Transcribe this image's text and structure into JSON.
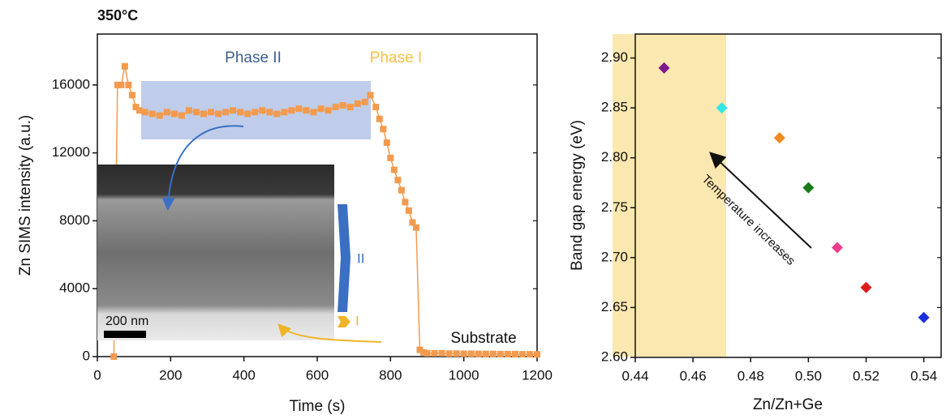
{
  "chart_data": [
    {
      "type": "line",
      "title": "350°C",
      "xlabel": "Time (s)",
      "ylabel": "Zn SIMS intensity (a.u.)",
      "x": [
        45,
        55,
        65,
        75,
        85,
        95,
        105,
        115,
        130,
        150,
        170,
        190,
        210,
        230,
        250,
        270,
        290,
        310,
        330,
        350,
        370,
        390,
        410,
        430,
        450,
        470,
        490,
        510,
        530,
        550,
        570,
        590,
        610,
        630,
        650,
        670,
        690,
        710,
        730,
        745,
        760,
        770,
        780,
        790,
        800,
        810,
        820,
        830,
        840,
        850,
        860,
        870,
        880,
        890,
        900,
        920,
        940,
        960,
        980,
        1000,
        1020,
        1040,
        1060,
        1080,
        1100,
        1120,
        1140,
        1160,
        1180,
        1200
      ],
      "series": [
        {
          "color": "#f29b4f",
          "values": [
            0,
            16000,
            16000,
            17100,
            16000,
            15400,
            14700,
            14500,
            14400,
            14300,
            14200,
            14400,
            14300,
            14200,
            14500,
            14400,
            14300,
            14400,
            14300,
            14400,
            14500,
            14400,
            14300,
            14400,
            14500,
            14400,
            14300,
            14400,
            14500,
            14600,
            14500,
            14400,
            14600,
            14500,
            14700,
            14800,
            14700,
            14900,
            15000,
            15400,
            14700,
            14000,
            13400,
            12600,
            11700,
            11000,
            10400,
            9800,
            9100,
            8600,
            7900,
            7600,
            400,
            250,
            200,
            200,
            200,
            180,
            180,
            170,
            170,
            160,
            160,
            160,
            150,
            150,
            150,
            140,
            140,
            130
          ]
        }
      ],
      "xlim": [
        0,
        1200
      ],
      "xticks": [
        0,
        200,
        400,
        600,
        800,
        1000,
        1200
      ],
      "ylim": [
        0,
        19000
      ],
      "yticks": [
        0,
        4000,
        8000,
        12000,
        16000
      ],
      "annotations": [
        "Phase II",
        "Phase I",
        "Substrate"
      ],
      "inset_labels": [
        "200 nm",
        "II",
        "I"
      ]
    },
    {
      "type": "scatter",
      "xlabel": "Zn/Zn+Ge",
      "ylabel": "Band gap energy (eV)",
      "x": [
        0.45,
        0.47,
        0.49,
        0.5,
        0.51,
        0.52,
        0.54
      ],
      "series": [
        {
          "values": [
            2.89,
            2.85,
            2.82,
            2.77,
            2.71,
            2.67,
            2.64
          ],
          "colors": [
            "#7b1a8c",
            "#33e6e6",
            "#f28a1e",
            "#1a7a1a",
            "#ee3c8c",
            "#e01a1a",
            "#1a2ee0"
          ]
        }
      ],
      "xlim": [
        0.44,
        0.546
      ],
      "xticks": [
        0.44,
        0.46,
        0.48,
        {
          "value": 0.5,
          "label": "0.50"
        },
        0.52,
        0.54
      ],
      "ylim": [
        2.6,
        2.924
      ],
      "yticks": [
        {
          "value": 2.6,
          "label": "2.60"
        },
        2.65,
        {
          "value": 2.7,
          "label": "2.70"
        },
        2.75,
        {
          "value": 2.8,
          "label": "2.80"
        },
        2.85,
        {
          "value": 2.9,
          "label": "2.90"
        }
      ],
      "annotations": [
        "Temperature increases"
      ]
    }
  ]
}
